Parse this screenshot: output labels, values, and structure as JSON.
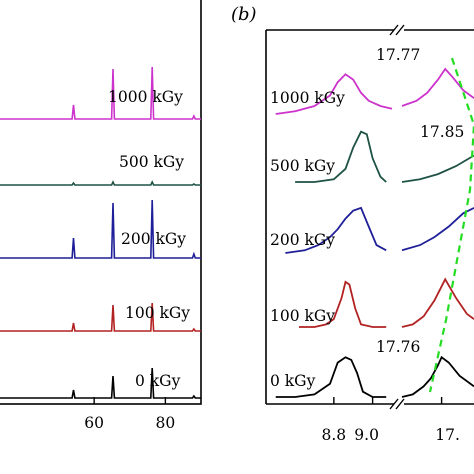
{
  "chart_data": [
    {
      "type": "line",
      "panel": "",
      "xlabel": "",
      "ylabel": "",
      "xlim": [
        33,
        90
      ],
      "xticks": [
        60,
        80
      ],
      "grid": false,
      "peaks_2theta": [
        54.2,
        65.3,
        76.3,
        88.0
      ],
      "series": [
        {
          "name": "1000 kGy",
          "color": "#cc33cc",
          "baseline_intensity": 4,
          "peak_heights": [
            14,
            50,
            52,
            3
          ]
        },
        {
          "name": "500 kGy",
          "color": "#1e5245",
          "baseline_intensity": 3,
          "peak_heights": [
            2,
            3,
            3,
            1
          ]
        },
        {
          "name": "200 kGy",
          "color": "#1f1f99",
          "baseline_intensity": 3,
          "peak_heights": [
            20,
            55,
            58,
            4
          ]
        },
        {
          "name": "100 kGy",
          "color": "#b22222",
          "baseline_intensity": 3,
          "peak_heights": [
            8,
            26,
            28,
            2
          ]
        },
        {
          "name": "0 kGy",
          "color": "#000000",
          "baseline_intensity": 3,
          "peak_heights": [
            8,
            22,
            30,
            2
          ]
        }
      ]
    },
    {
      "type": "line",
      "panel": "(b)",
      "xlabel": "",
      "ylabel": "",
      "xticks": [
        "8.8",
        "9.0",
        "17."
      ],
      "broken_axis": true,
      "grid": false,
      "shift_guide_color": "#22dd22",
      "annotations": [
        "17.77",
        "17.85",
        "17.76"
      ],
      "series": [
        {
          "name": "1000 kGy",
          "color": "#cc33cc",
          "left_x": [
            8.5,
            8.6,
            8.7,
            8.78,
            8.82,
            8.86,
            8.9,
            8.94,
            8.98,
            9.04,
            9.1
          ],
          "left_y": [
            3,
            4,
            6,
            10,
            15,
            18,
            16,
            11,
            8,
            6,
            5
          ],
          "right_x": [
            17.65,
            17.69,
            17.72,
            17.75,
            17.77,
            17.79,
            17.82,
            17.85
          ],
          "right_y": [
            6,
            8,
            11,
            16,
            20,
            17,
            12,
            9
          ]
        },
        {
          "name": "500 kGy",
          "color": "#1e5245",
          "left_x": [
            8.6,
            8.7,
            8.8,
            8.86,
            8.9,
            8.94,
            8.97,
            9.0,
            9.04,
            9.07
          ],
          "left_y": [
            3,
            3,
            4,
            8,
            16,
            22,
            21,
            12,
            5,
            3
          ],
          "right_x": [
            17.65,
            17.7,
            17.75,
            17.8,
            17.85
          ],
          "right_y": [
            3,
            4,
            6,
            9,
            13
          ]
        },
        {
          "name": "200 kGy",
          "color": "#1f1f99",
          "left_x": [
            8.55,
            8.65,
            8.72,
            8.78,
            8.82,
            8.86,
            8.9,
            8.94,
            8.98,
            9.02,
            9.07
          ],
          "left_y": [
            3,
            4,
            6,
            9,
            12,
            16,
            19,
            20,
            13,
            6,
            4
          ],
          "right_x": [
            17.65,
            17.7,
            17.74,
            17.78,
            17.82,
            17.85
          ],
          "right_y": [
            4,
            6,
            9,
            13,
            18,
            20
          ]
        },
        {
          "name": "100 kGy",
          "color": "#b22222",
          "left_x": [
            8.62,
            8.7,
            8.76,
            8.8,
            8.84,
            8.86,
            8.88,
            8.91,
            8.94,
            9.0,
            9.07
          ],
          "left_y": [
            3,
            3,
            4,
            6,
            14,
            20,
            19,
            10,
            4,
            3,
            3
          ],
          "right_x": [
            17.65,
            17.68,
            17.71,
            17.74,
            17.77,
            17.8,
            17.83,
            17.85
          ],
          "right_y": [
            3,
            4,
            7,
            13,
            21,
            14,
            8,
            6
          ]
        },
        {
          "name": "0 kGy",
          "color": "#000000",
          "left_x": [
            8.5,
            8.6,
            8.7,
            8.78,
            8.82,
            8.86,
            8.89,
            8.92,
            8.95,
            9.0,
            9.07
          ],
          "left_y": [
            3,
            3,
            4,
            8,
            16,
            18,
            17,
            12,
            5,
            3,
            3
          ],
          "right_x": [
            17.65,
            17.68,
            17.71,
            17.73,
            17.75,
            17.76,
            17.78,
            17.81,
            17.85
          ],
          "right_y": [
            3,
            4,
            7,
            10,
            15,
            18,
            16,
            11,
            7
          ]
        }
      ]
    }
  ]
}
